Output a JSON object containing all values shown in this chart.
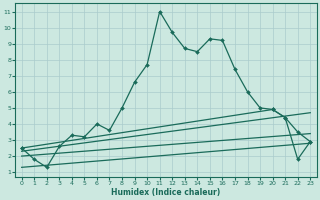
{
  "xlabel": "Humidex (Indice chaleur)",
  "x_ticks": [
    0,
    1,
    2,
    3,
    4,
    5,
    6,
    7,
    8,
    9,
    10,
    11,
    12,
    13,
    14,
    15,
    16,
    17,
    18,
    19,
    20,
    21,
    22,
    23
  ],
  "y_ticks": [
    1,
    2,
    3,
    4,
    5,
    6,
    7,
    8,
    9,
    10,
    11
  ],
  "xlim": [
    -0.5,
    23.5
  ],
  "ylim": [
    0.7,
    11.5
  ],
  "bg_color": "#cce8e0",
  "line_color": "#1a6b5a",
  "grid_color": "#aacccc",
  "line1_x": [
    0,
    1,
    2,
    3,
    4,
    5,
    6,
    7,
    8,
    9,
    10,
    11,
    12,
    13,
    14,
    15,
    16,
    17,
    18,
    19,
    20,
    21,
    22,
    23
  ],
  "line1_y": [
    2.5,
    1.8,
    1.3,
    2.6,
    3.3,
    3.2,
    4.0,
    3.6,
    5.0,
    6.6,
    7.7,
    11.0,
    9.7,
    8.7,
    8.5,
    9.3,
    9.2,
    7.4,
    6.0,
    5.0,
    4.9,
    4.4,
    3.5,
    2.9
  ],
  "line2_x": [
    0,
    20,
    21,
    22,
    23
  ],
  "line2_y": [
    2.5,
    4.9,
    4.4,
    1.8,
    2.9
  ],
  "line3_x": [
    0,
    23
  ],
  "line3_y": [
    2.3,
    4.7
  ],
  "line4_x": [
    0,
    23
  ],
  "line4_y": [
    2.0,
    3.4
  ],
  "line5_x": [
    0,
    23
  ],
  "line5_y": [
    1.3,
    2.8
  ]
}
